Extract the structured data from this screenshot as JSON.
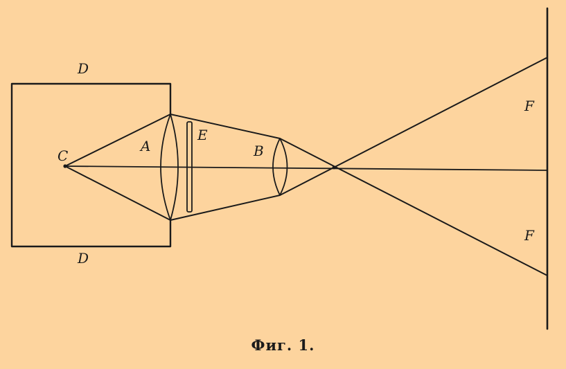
{
  "figure": {
    "caption": "Фиг. 1.",
    "labels": {
      "box_top": "D",
      "box_bottom": "D",
      "source": "C",
      "lens_a": "A",
      "slide": "E",
      "lens_b": "B",
      "image_top": "F",
      "image_bottom": "F"
    }
  },
  "colors": {
    "background": "#fdd49e",
    "ink": "#1a1a1a"
  }
}
